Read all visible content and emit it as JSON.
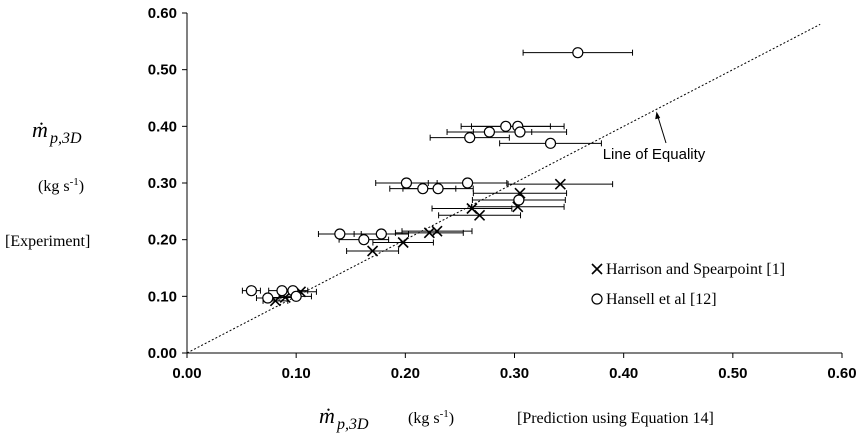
{
  "chart_data": {
    "type": "scatter",
    "xlim": [
      0,
      0.6
    ],
    "ylim": [
      0,
      0.6
    ],
    "x_ticks": [
      "0.00",
      "0.10",
      "0.20",
      "0.30",
      "0.40",
      "0.50",
      "0.60"
    ],
    "y_ticks": [
      "0.00",
      "0.10",
      "0.20",
      "0.30",
      "0.40",
      "0.50",
      "0.60"
    ],
    "xlabel": {
      "symbol": "ṁ",
      "subscript": "p,3D",
      "units_base": "(kg s",
      "units_exp": "-1",
      "units_close": ")",
      "note": "[Prediction using Equation 14]"
    },
    "ylabel": {
      "symbol": "ṁ",
      "subscript": "p,3D",
      "units_base": "(kg s",
      "units_exp": "-1",
      "units_close": ")",
      "note": "[Experiment]"
    },
    "grid": false,
    "reference_line": {
      "label": "Line of Equality",
      "x": [
        0.0,
        0.58
      ],
      "y": [
        0.0,
        0.58
      ]
    },
    "legend_position": "right",
    "series": [
      {
        "name": "Harrison and Spearpoint [1]",
        "marker": "cross",
        "x_error_fraction": 0.14,
        "points": [
          {
            "x": 0.081,
            "y": 0.092
          },
          {
            "x": 0.09,
            "y": 0.098
          },
          {
            "x": 0.104,
            "y": 0.108
          },
          {
            "x": 0.17,
            "y": 0.18
          },
          {
            "x": 0.198,
            "y": 0.195
          },
          {
            "x": 0.222,
            "y": 0.212
          },
          {
            "x": 0.229,
            "y": 0.215
          },
          {
            "x": 0.261,
            "y": 0.255
          },
          {
            "x": 0.268,
            "y": 0.243
          },
          {
            "x": 0.303,
            "y": 0.258
          },
          {
            "x": 0.305,
            "y": 0.282
          },
          {
            "x": 0.342,
            "y": 0.298
          }
        ]
      },
      {
        "name": "Hansell et al [12]",
        "marker": "circle",
        "x_error_fraction": 0.14,
        "points": [
          {
            "x": 0.059,
            "y": 0.11
          },
          {
            "x": 0.074,
            "y": 0.097
          },
          {
            "x": 0.087,
            "y": 0.11
          },
          {
            "x": 0.097,
            "y": 0.11
          },
          {
            "x": 0.1,
            "y": 0.1
          },
          {
            "x": 0.14,
            "y": 0.21
          },
          {
            "x": 0.162,
            "y": 0.2
          },
          {
            "x": 0.178,
            "y": 0.21
          },
          {
            "x": 0.201,
            "y": 0.3
          },
          {
            "x": 0.216,
            "y": 0.29
          },
          {
            "x": 0.23,
            "y": 0.29
          },
          {
            "x": 0.257,
            "y": 0.3
          },
          {
            "x": 0.304,
            "y": 0.27
          },
          {
            "x": 0.259,
            "y": 0.38
          },
          {
            "x": 0.277,
            "y": 0.39
          },
          {
            "x": 0.292,
            "y": 0.4
          },
          {
            "x": 0.303,
            "y": 0.4
          },
          {
            "x": 0.305,
            "y": 0.39
          },
          {
            "x": 0.333,
            "y": 0.37
          },
          {
            "x": 0.358,
            "y": 0.53
          }
        ]
      }
    ]
  }
}
